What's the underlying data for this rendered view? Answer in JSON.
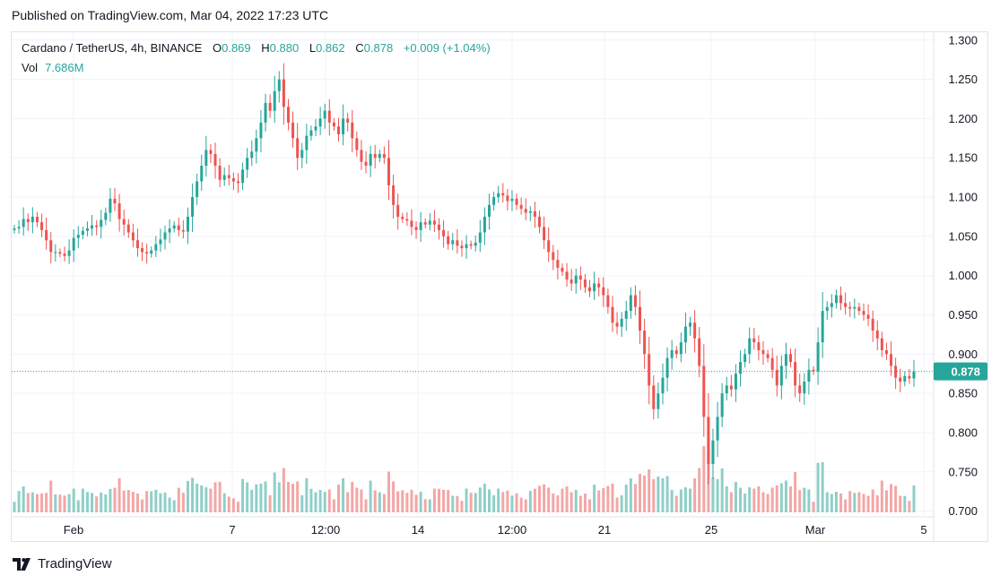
{
  "published": "Published on TradingView.com, Mar 04, 2022 17:23 UTC",
  "legend": {
    "symbol": "Cardano / TetherUS, 4h, BINANCE",
    "open_label": "O",
    "open": "0.869",
    "high_label": "H",
    "high": "0.880",
    "low_label": "L",
    "low": "0.862",
    "close_label": "C",
    "close": "0.878",
    "change": "+0.009 (+1.04%)"
  },
  "volume": {
    "label": "Vol",
    "value": "7.686M"
  },
  "footer": {
    "brand": "TradingView"
  },
  "colors": {
    "up": "#26a69a",
    "down": "#ef5350",
    "up_vol": "#8fcfc8",
    "down_vol": "#f2a7a6",
    "grid": "#f0f3fa",
    "axis_text": "#131722"
  },
  "chart_data": {
    "type": "candlestick",
    "title": "Cardano / TetherUS, 4h, BINANCE",
    "y_ticks": [
      "1.300",
      "1.250",
      "1.200",
      "1.150",
      "1.100",
      "1.050",
      "1.000",
      "0.950",
      "0.900",
      "0.850",
      "0.800",
      "0.750",
      "0.700"
    ],
    "ylim": [
      0.695,
      1.31
    ],
    "x_ticks": [
      "Feb",
      "7",
      "12:00",
      "14",
      "12:00",
      "21",
      "25",
      "Mar",
      "5"
    ],
    "last_price": "0.878",
    "series_close": [
      1.06,
      1.062,
      1.072,
      1.068,
      1.075,
      1.068,
      1.058,
      1.045,
      1.03,
      1.03,
      1.028,
      1.025,
      1.032,
      1.048,
      1.052,
      1.057,
      1.06,
      1.064,
      1.062,
      1.071,
      1.08,
      1.098,
      1.092,
      1.072,
      1.065,
      1.055,
      1.045,
      1.035,
      1.03,
      1.028,
      1.032,
      1.04,
      1.046,
      1.055,
      1.06,
      1.064,
      1.058,
      1.056,
      1.075,
      1.1,
      1.12,
      1.14,
      1.16,
      1.155,
      1.14,
      1.122,
      1.128,
      1.124,
      1.12,
      1.118,
      1.135,
      1.15,
      1.158,
      1.175,
      1.195,
      1.22,
      1.21,
      1.235,
      1.25,
      1.215,
      1.195,
      1.175,
      1.15,
      1.16,
      1.178,
      1.185,
      1.19,
      1.2,
      1.21,
      1.195,
      1.19,
      1.18,
      1.2,
      1.195,
      1.175,
      1.16,
      1.145,
      1.14,
      1.155,
      1.15,
      1.155,
      1.15,
      1.115,
      1.09,
      1.075,
      1.072,
      1.07,
      1.062,
      1.058,
      1.068,
      1.065,
      1.07,
      1.065,
      1.058,
      1.05,
      1.04,
      1.045,
      1.038,
      1.035,
      1.04,
      1.038,
      1.042,
      1.055,
      1.075,
      1.09,
      1.1,
      1.105,
      1.102,
      1.095,
      1.098,
      1.09,
      1.085,
      1.08,
      1.082,
      1.075,
      1.062,
      1.045,
      1.03,
      1.02,
      1.01,
      1.005,
      0.995,
      0.99,
      1.0,
      0.995,
      0.985,
      0.98,
      0.99,
      0.985,
      0.975,
      0.96,
      0.94,
      0.935,
      0.945,
      0.955,
      0.975,
      0.96,
      0.93,
      0.9,
      0.86,
      0.83,
      0.85,
      0.87,
      0.895,
      0.905,
      0.9,
      0.915,
      0.935,
      0.94,
      0.92,
      0.885,
      0.82,
      0.76,
      0.79,
      0.82,
      0.85,
      0.86,
      0.855,
      0.875,
      0.89,
      0.9,
      0.92,
      0.915,
      0.905,
      0.9,
      0.895,
      0.88,
      0.86,
      0.885,
      0.9,
      0.89,
      0.86,
      0.85,
      0.865,
      0.88,
      0.878,
      0.915,
      0.955,
      0.96,
      0.965,
      0.975,
      0.965,
      0.96,
      0.958,
      0.96,
      0.955,
      0.95,
      0.945,
      0.93,
      0.92,
      0.905,
      0.9,
      0.885,
      0.87,
      0.865,
      0.872,
      0.869,
      0.878
    ],
    "volume_y_ticks": []
  }
}
